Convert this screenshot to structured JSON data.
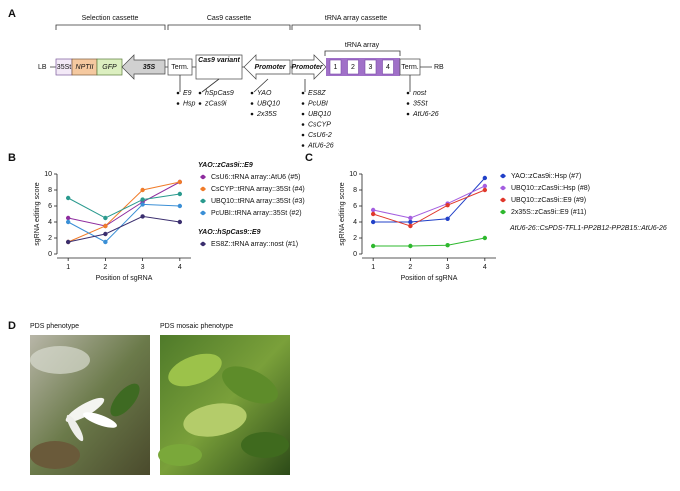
{
  "panel_labels": [
    "A",
    "B",
    "C",
    "D"
  ],
  "panel_a": {
    "cassettes": [
      "Selection cassette",
      "Cas9 cassette",
      "tRNA array cassette"
    ],
    "trna_array": "tRNA array",
    "lb": "LB",
    "rb": "RB",
    "parts": {
      "t35": "35St",
      "nptii": "NPTII",
      "gfp": "GFP",
      "p35": "35S",
      "term1": "Term.",
      "cas9": "Cas9 variant",
      "promoter1": "Promoter",
      "promoter2": "Promoter",
      "units": [
        "1",
        "2",
        "3",
        "4"
      ],
      "term2": "Term."
    },
    "options": {
      "term1": [
        "E9",
        "Hsp"
      ],
      "cas9": [
        "hSpCas9",
        "zCas9i"
      ],
      "promoter1": [
        "YAO",
        "UBQ10",
        "2x35S"
      ],
      "promoter2": [
        "ES8Z",
        "PcUBI",
        "UBQ10",
        "CsCYP",
        "CsU6-2",
        "AtU6-26"
      ],
      "term2": [
        "nost",
        "35St",
        "AtU6-26"
      ]
    }
  },
  "chart_data": [
    {
      "type": "line",
      "x_label": "Position of sgRNA",
      "y_label": "sgRNA editing score",
      "legend_headings": [
        "YAO::zCas9i::E9",
        "YAO::hSpCas9::E9"
      ],
      "x": [
        1,
        2,
        3,
        4
      ],
      "xlim": [
        0.7,
        4.3
      ],
      "xticks": [
        1,
        2,
        3,
        4
      ],
      "ylim": [
        0,
        10
      ],
      "yticks": [
        0,
        2,
        4,
        6,
        8,
        10
      ],
      "series": [
        {
          "name": "CsU6::tRNA array::AtU6 (#5)",
          "color": "#8e2c9e",
          "values": [
            4.5,
            3.5,
            6.5,
            9
          ]
        },
        {
          "name": "CsCYP::tRNA array::35St (#4)",
          "color": "#f07c2a",
          "values": [
            1.5,
            3.5,
            8,
            9
          ]
        },
        {
          "name": "UBQ10::tRNA array::35St (#3)",
          "color": "#2a9a8e",
          "values": [
            7,
            4.5,
            6.8,
            7.5
          ]
        },
        {
          "name": "PcUBI::tRNA array::35St (#2)",
          "color": "#3a8fd6",
          "values": [
            4,
            1.5,
            6.2,
            6
          ]
        },
        {
          "name": "ES8Z::tRNA array::nost (#1)",
          "color": "#3a2e6e",
          "values": [
            1.5,
            2.5,
            4.7,
            4
          ]
        }
      ]
    },
    {
      "type": "line",
      "x_label": "Position of sgRNA",
      "y_label": "sgRNA editing score",
      "annotation": "AtU6-26::CsPDS-TFL1-PP2B12-PP2B15::AtU6-26",
      "x": [
        1,
        2,
        3,
        4
      ],
      "xlim": [
        0.7,
        4.3
      ],
      "xticks": [
        1,
        2,
        3,
        4
      ],
      "ylim": [
        0,
        10
      ],
      "yticks": [
        0,
        2,
        4,
        6,
        8,
        10
      ],
      "series": [
        {
          "name": "YAO::zCas9i::Hsp (#7)",
          "color": "#2140c8",
          "values": [
            4,
            4,
            4.4,
            9.5
          ]
        },
        {
          "name": "UBQ10::zCas9i::Hsp (#8)",
          "color": "#a45ee0",
          "values": [
            5.5,
            4.5,
            6.3,
            8.5
          ]
        },
        {
          "name": "UBQ10::zCas9i::E9 (#9)",
          "color": "#e0382c",
          "values": [
            5,
            3.5,
            6.1,
            8
          ]
        },
        {
          "name": "2x35S::zCas9i::E9 (#11)",
          "color": "#2eb82e",
          "values": [
            1,
            1,
            1.1,
            2
          ]
        }
      ]
    }
  ],
  "panel_d": {
    "titles": [
      "PDS phenotype",
      "PDS mosaic phenotype"
    ]
  }
}
